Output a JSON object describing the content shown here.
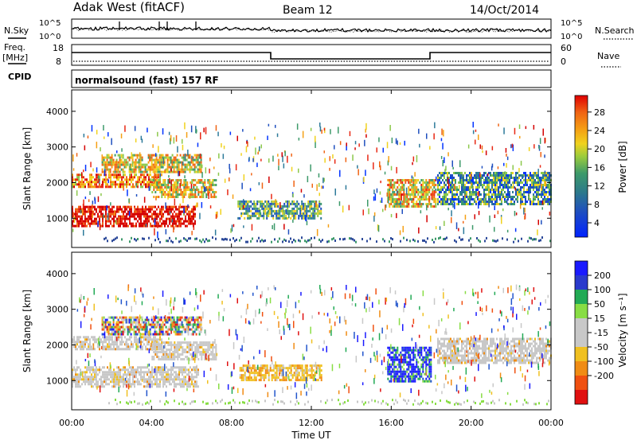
{
  "header": {
    "title": "Adak West (fitACF)",
    "beam": "Beam 12",
    "date": "14/Oct/2014"
  },
  "top_panels": {
    "nsky_label": "N.Sky",
    "nsearch_label": "N.Search",
    "freq_label_line1": "Freq.",
    "freq_label_line2": "[MHz]",
    "nave_label": "Nave",
    "cpid_label": "CPID",
    "cpid_text": "normalsound (fast) 157 RF",
    "noise_ticks": [
      "10^5",
      "10^0"
    ],
    "freq_ticks": [
      "18",
      "8"
    ],
    "nave_ticks": [
      "60",
      "0"
    ]
  },
  "chart_data": [
    {
      "type": "heatmap",
      "panel": "power",
      "title": "",
      "xlabel": "",
      "ylabel": "Slant Range [km]",
      "xlim": [
        0,
        24
      ],
      "ylim": [
        180,
        4600
      ],
      "yticks": [
        "1000",
        "2000",
        "3000",
        "4000"
      ],
      "colorbar_label": "Power [dB]",
      "colorbar_ticks": [
        "4",
        "8",
        "12",
        "16",
        "20",
        "24",
        "28"
      ],
      "colorbar_colors": [
        "#0033ff",
        "#1f4fbf",
        "#2d7a9a",
        "#3d9a6a",
        "#8cc84b",
        "#f0d21e",
        "#f5a014",
        "#f06414",
        "#e82814",
        "#d40000"
      ],
      "regions": [
        {
          "t0": 0.0,
          "t1": 6.2,
          "r0": 800,
          "r1": 1350,
          "level": 0.95
        },
        {
          "t0": 0.0,
          "t1": 4.5,
          "r0": 1850,
          "r1": 2250,
          "level": 0.7
        },
        {
          "t0": 4.0,
          "t1": 7.2,
          "r0": 1600,
          "r1": 2100,
          "level": 0.55
        },
        {
          "t0": 1.5,
          "t1": 6.5,
          "r0": 2300,
          "r1": 2800,
          "level": 0.55
        },
        {
          "t0": 8.3,
          "t1": 12.5,
          "r0": 1000,
          "r1": 1500,
          "level": 0.35
        },
        {
          "t0": 15.8,
          "t1": 18.2,
          "r0": 1300,
          "r1": 2100,
          "level": 0.6
        },
        {
          "t0": 18.3,
          "t1": 24.0,
          "r0": 1400,
          "r1": 2300,
          "level": 0.3
        }
      ]
    },
    {
      "type": "heatmap",
      "panel": "velocity",
      "title": "",
      "xlabel": "Time UT",
      "ylabel": "Slant Range [km]",
      "xlim": [
        0,
        24
      ],
      "ylim": [
        180,
        4600
      ],
      "yticks": [
        "1000",
        "2000",
        "3000",
        "4000"
      ],
      "xticks": [
        "00:00",
        "04:00",
        "08:00",
        "12:00",
        "16:00",
        "20:00",
        "00:00"
      ],
      "colorbar_label": "Velocity [m s⁻¹]",
      "colorbar_ticks": [
        "200",
        "100",
        "50",
        "15",
        "-15",
        "-50",
        "-100",
        "-200"
      ],
      "colorbar_colors": [
        "#1a1aff",
        "#2255cc",
        "#22aa55",
        "#88dd44",
        "#c8c8c8",
        "#c8c8c8",
        "#f0c020",
        "#f08c14",
        "#f05010",
        "#e01010"
      ],
      "regions": [
        {
          "t0": 0.0,
          "t1": 6.3,
          "r0": 800,
          "r1": 1400,
          "level": "gray"
        },
        {
          "t0": 0.0,
          "t1": 4.5,
          "r0": 1850,
          "r1": 2250,
          "level": "gray"
        },
        {
          "t0": 4.0,
          "t1": 7.2,
          "r0": 1600,
          "r1": 2100,
          "level": "gray"
        },
        {
          "t0": 1.5,
          "t1": 6.5,
          "r0": 2300,
          "r1": 2800,
          "level": "mixed"
        },
        {
          "t0": 8.4,
          "t1": 12.5,
          "r0": 1000,
          "r1": 1450,
          "level": "orange"
        },
        {
          "t0": 15.8,
          "t1": 18.0,
          "r0": 1000,
          "r1": 1950,
          "level": "blue"
        },
        {
          "t0": 18.3,
          "t1": 24.0,
          "r0": 1500,
          "r1": 2200,
          "level": "gray"
        }
      ]
    }
  ]
}
